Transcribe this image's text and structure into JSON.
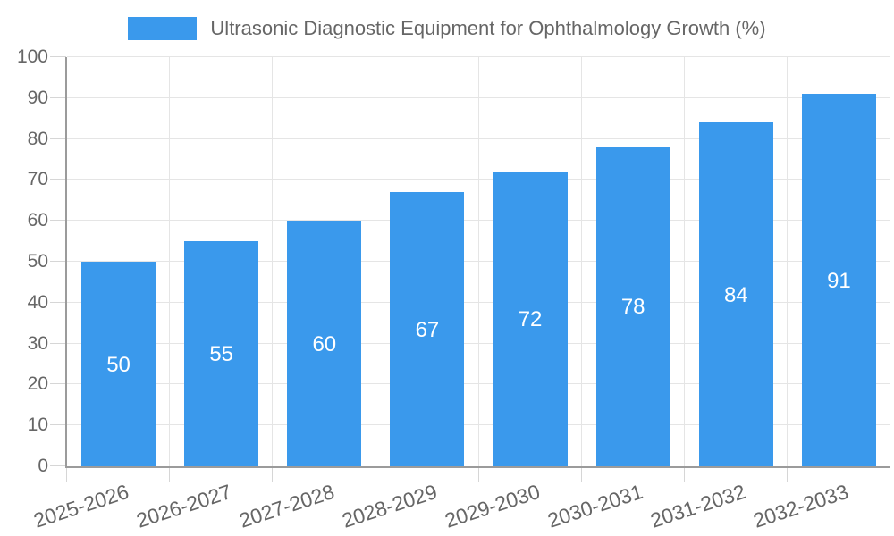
{
  "chart_data": {
    "type": "bar",
    "title": "Ultrasonic Diagnostic Equipment for Ophthalmology Growth (%)",
    "categories": [
      "2025-2026",
      "2026-2027",
      "2027-2028",
      "2028-2029",
      "2029-2030",
      "2030-2031",
      "2031-2032",
      "2032-2033"
    ],
    "values": [
      50,
      55,
      60,
      67,
      72,
      78,
      84,
      91
    ],
    "value_labels": [
      "50",
      "55",
      "60",
      "67",
      "72",
      "78",
      "84",
      "91"
    ],
    "xlabel": "",
    "ylabel": "",
    "ylim": [
      0,
      100
    ],
    "ytick_step": 10,
    "ytick_labels": [
      "0",
      "10",
      "20",
      "30",
      "40",
      "50",
      "60",
      "70",
      "80",
      "90",
      "100"
    ],
    "grid": true,
    "legend_position": "top-center",
    "colors": {
      "bar": "#3A99EC",
      "value_label": "#FFFFFF",
      "axis_text": "#666666",
      "legend_text": "#666666",
      "gridline": "#E5E5E5",
      "tick": "#D6D6D6",
      "axis_line": "#9B9B9B",
      "background": "#FFFFFF"
    }
  }
}
